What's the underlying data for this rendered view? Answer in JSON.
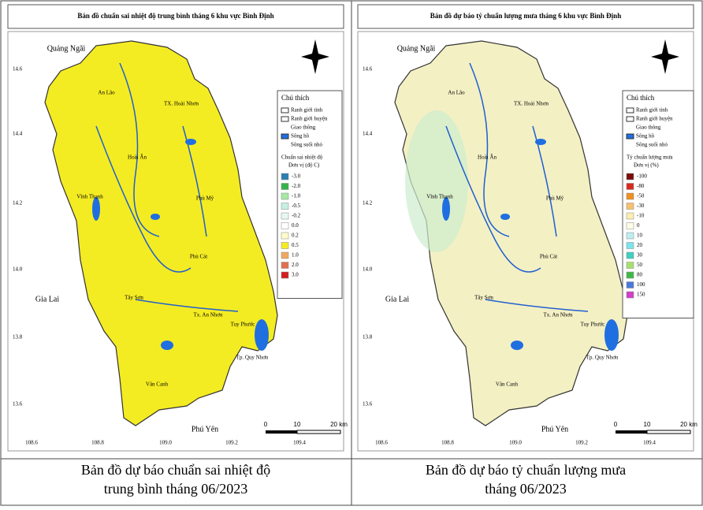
{
  "maps": [
    {
      "title": "Bản đồ chuẩn sai nhiệt độ trung bình tháng 6 khu vực Bình Định",
      "base_color": "#f4ec22",
      "places": [
        "Quảng Ngãi",
        "An Lão",
        "TX. Hoài Nhơn",
        "Hoài Ân",
        "Vĩnh Thạnh",
        "Phù Mỹ",
        "Phù Cát",
        "Tây Sơn",
        "Tx. An Nhơn",
        "Tuy Phước",
        "Tp. Quy Nhơn",
        "Vân Canh",
        "Gia Lai",
        "Phú Yên"
      ],
      "lat_ticks": [
        "14.6",
        "14.4",
        "14.2",
        "14.0",
        "13.8",
        "13.6"
      ],
      "lon_ticks": [
        "108.6",
        "108.8",
        "109.0",
        "109.2",
        "109.4"
      ],
      "scale": [
        "0",
        "10",
        "20 km"
      ],
      "legend": {
        "title": "Chú thích",
        "layers": [
          "Ranh giới tỉnh",
          "Ranh giới huyện",
          "Giao thông",
          "Sông hồ",
          "Sông suối nhỏ"
        ],
        "scale_title": "Chuẩn sai nhiệt độ",
        "unit": "Đơn vị (độ C)",
        "classes": [
          {
            "label": "-3.0",
            "color": "#2b7fb3"
          },
          {
            "label": "-2.0",
            "color": "#35b24a"
          },
          {
            "label": "-1.0",
            "color": "#a6e8a4"
          },
          {
            "label": "-0.5",
            "color": "#c6f0df"
          },
          {
            "label": "-0.2",
            "color": "#e8f8f0"
          },
          {
            "label": "0.0",
            "color": "#ffffff"
          },
          {
            "label": "0.2",
            "color": "#fffbc8"
          },
          {
            "label": "0.5",
            "color": "#f4ec22"
          },
          {
            "label": "1.0",
            "color": "#f0a860"
          },
          {
            "label": "2.0",
            "color": "#e07050"
          },
          {
            "label": "3.0",
            "color": "#d02020"
          }
        ]
      },
      "caption": [
        "Bản đồ dự báo chuẩn sai nhiệt độ",
        "trung bình tháng 06/2023"
      ]
    },
    {
      "title": "Bản đồ dự báo tỷ chuẩn lượng mưa tháng 6 khu vực Bình Định",
      "base_color": "#f3f0c4",
      "places": [
        "Quảng Ngãi",
        "An Lão",
        "TX. Hoài Nhơn",
        "Hoài Ân",
        "Vĩnh Thạnh",
        "Phù Mỹ",
        "Phù Cát",
        "Tây Sơn",
        "Tx. An Nhơn",
        "Tuy Phước",
        "Tp. Quy Nhơn",
        "Vân Canh",
        "Gia Lai",
        "Phú Yên"
      ],
      "lat_ticks": [
        "14.6",
        "14.4",
        "14.2",
        "14.0",
        "13.8",
        "13.6"
      ],
      "lon_ticks": [
        "108.6",
        "108.8",
        "109.0",
        "109.2",
        "109.4"
      ],
      "scale": [
        "0",
        "10",
        "20 km"
      ],
      "legend": {
        "title": "Chú thích",
        "layers": [
          "Ranh giới tỉnh",
          "Ranh giới huyện",
          "Giao thông",
          "Sông hồ",
          "Sông suối nhỏ"
        ],
        "scale_title": "Tỷ chuẩn lượng mưa",
        "unit": "Đơn vị (%)",
        "classes": [
          {
            "label": "-100",
            "color": "#7a0c0c"
          },
          {
            "label": "-80",
            "color": "#d82a20"
          },
          {
            "label": "-50",
            "color": "#f09020"
          },
          {
            "label": "-30",
            "color": "#f8c070"
          },
          {
            "label": "-10",
            "color": "#fbeeb0"
          },
          {
            "label": "0",
            "color": "#fffde8"
          },
          {
            "label": "10",
            "color": "#bfeef0"
          },
          {
            "label": "20",
            "color": "#7ee4ea"
          },
          {
            "label": "30",
            "color": "#40d0c0"
          },
          {
            "label": "50",
            "color": "#a8e070"
          },
          {
            "label": "80",
            "color": "#40b848"
          },
          {
            "label": "100",
            "color": "#4a78d8"
          },
          {
            "label": "150",
            "color": "#d040c8"
          }
        ]
      },
      "caption": [
        "Bản đồ dự báo tỷ chuẩn lượng mưa",
        "tháng 06/2023"
      ]
    }
  ]
}
